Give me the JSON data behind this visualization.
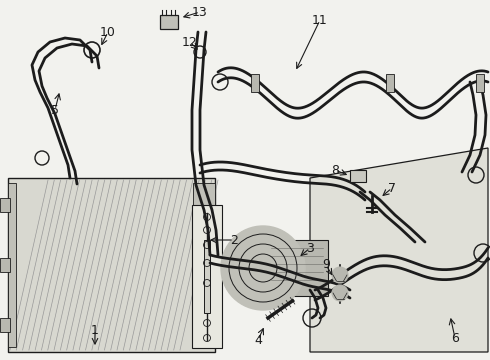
{
  "bg_color": "#f2f2ee",
  "line_color": "#1c1c1c",
  "fin_color": "#999999",
  "part_fill": "#c8c8c0",
  "panel_fill": "#e0e0d8",
  "condenser_fill": "#d8d8d0",
  "label_fs": 8.5
}
